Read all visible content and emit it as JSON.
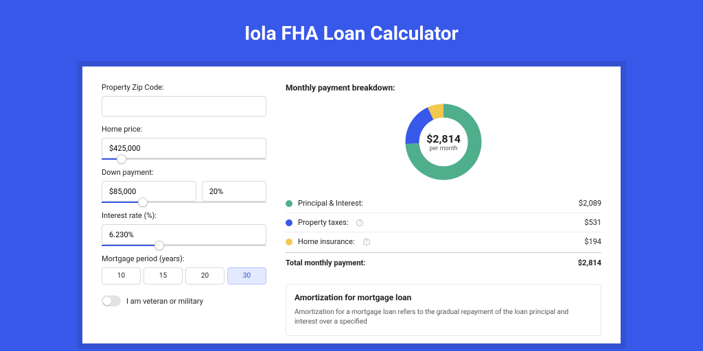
{
  "title": "Iola FHA Loan Calculator",
  "colors": {
    "pageBg": "#3858e9",
    "outerCard": "#3551d1",
    "principal": "#4fae8c",
    "taxes": "#3858e9",
    "insurance": "#f0c94e"
  },
  "form": {
    "zip": {
      "label": "Property Zip Code:",
      "value": ""
    },
    "homePrice": {
      "label": "Home price:",
      "value": "$425,000",
      "sliderPct": 12
    },
    "downPayment": {
      "label": "Down payment:",
      "amount": "$85,000",
      "percent": "20%",
      "sliderPct": 25
    },
    "interestRate": {
      "label": "Interest rate (%):",
      "value": "6.230%",
      "sliderPct": 35
    },
    "mortgagePeriod": {
      "label": "Mortgage period (years):",
      "options": [
        "10",
        "15",
        "20",
        "30"
      ],
      "active": "30"
    },
    "veteran": {
      "label": "I am veteran or military",
      "on": false
    }
  },
  "breakdown": {
    "title": "Monthly payment breakdown:",
    "centerBig": "$2,814",
    "centerSmall": "per month",
    "items": [
      {
        "label": "Principal & Interest:",
        "value": "$2,089",
        "dot": "#4fae8c",
        "info": false,
        "pct": 74
      },
      {
        "label": "Property taxes:",
        "value": "$531",
        "dot": "#3858e9",
        "info": true,
        "pct": 19
      },
      {
        "label": "Home insurance:",
        "value": "$194",
        "dot": "#f0c94e",
        "info": true,
        "pct": 7
      }
    ],
    "totalLabel": "Total monthly payment:",
    "totalValue": "$2,814"
  },
  "amort": {
    "title": "Amortization for mortgage loan",
    "text": "Amortization for a mortgage loan refers to the gradual repayment of the loan principal and interest over a specified"
  }
}
